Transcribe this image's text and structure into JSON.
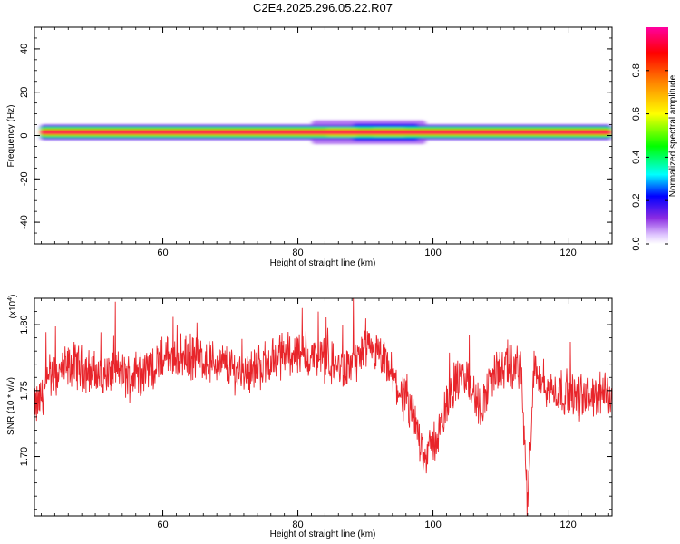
{
  "chart_data": [
    {
      "type": "heatmap",
      "title": "C2E4.2025.296.05.22.R07",
      "xlabel": "Height of straight line (km)",
      "ylabel": "Frequency (Hz)",
      "xlim": [
        41,
        126.5
      ],
      "ylim": [
        -50,
        50
      ],
      "xticks": [
        60,
        80,
        100,
        120
      ],
      "xtick_labels": [
        "60",
        "80",
        "100",
        "120"
      ],
      "yticks": [
        40,
        20,
        0,
        -20,
        -40
      ],
      "ytick_labels": [
        "40",
        "20",
        "0",
        "-20",
        "-40"
      ],
      "band": {
        "center_hz": 1.5,
        "segments": [
          {
            "x0": 41.8,
            "x1": 126.5,
            "half_width_hz": 3.5,
            "level": 0.15
          },
          {
            "x0": 41.8,
            "x1": 126.5,
            "half_width_hz": 2.4,
            "level": 0.45
          },
          {
            "x0": 41.8,
            "x1": 126.5,
            "half_width_hz": 1.3,
            "level": 0.8
          },
          {
            "x0": 41.8,
            "x1": 126.5,
            "half_width_hz": 0.5,
            "level": 0.95
          },
          {
            "x0": 82,
            "x1": 99,
            "half_width_hz": 5.5,
            "level": 0.08
          },
          {
            "x0": 88,
            "x1": 98,
            "half_width_hz": 4.0,
            "level": 0.2
          },
          {
            "x0": 84,
            "x1": 89,
            "half_width_hz": 1.8,
            "level": 0.55
          },
          {
            "x0": 91,
            "x1": 96,
            "half_width_hz": 2.2,
            "level": 0.5
          },
          {
            "x0": 100,
            "x1": 116,
            "half_width_hz": 2.8,
            "level": 0.1
          }
        ]
      },
      "colorbar": {
        "label": "Normalized spectral amplitude",
        "range": [
          0.0,
          1.0
        ],
        "ticks": [
          0.0,
          0.2,
          0.4,
          0.6,
          0.8
        ],
        "tick_labels": [
          "0.0",
          "0.2",
          "0.4",
          "0.6",
          "0.8"
        ]
      }
    },
    {
      "type": "line",
      "xlabel": "Height of straight line (km)",
      "ylabel": "SNR (10 * v/v)",
      "y_multiplier_label": "(x10",
      "y_multiplier_exp": "4",
      "xlim": [
        41,
        126.5
      ],
      "ylim": [
        1.655,
        1.82
      ],
      "xticks": [
        60,
        80,
        100,
        120
      ],
      "xtick_labels": [
        "60",
        "80",
        "100",
        "120"
      ],
      "yticks": [
        1.7,
        1.75,
        1.8
      ],
      "ytick_labels": [
        "1.70",
        "1.75",
        "1.80"
      ],
      "series": [
        {
          "name": "SNR",
          "color": "#e8242a",
          "x": [
            41,
            43,
            45,
            47,
            49,
            51,
            53,
            55,
            57,
            59,
            61,
            63,
            65,
            67,
            69,
            71,
            73,
            75,
            77,
            79,
            81,
            83,
            85,
            87,
            89,
            91,
            93,
            95,
            97,
            99,
            101,
            103,
            105,
            107,
            109,
            111,
            113,
            114,
            115,
            117,
            119,
            121,
            123,
            125,
            126.5
          ],
          "y": [
            1.735,
            1.755,
            1.765,
            1.77,
            1.765,
            1.76,
            1.765,
            1.76,
            1.765,
            1.77,
            1.775,
            1.775,
            1.775,
            1.772,
            1.77,
            1.765,
            1.765,
            1.77,
            1.775,
            1.78,
            1.775,
            1.775,
            1.77,
            1.765,
            1.775,
            1.78,
            1.77,
            1.75,
            1.73,
            1.7,
            1.72,
            1.755,
            1.76,
            1.735,
            1.765,
            1.765,
            1.77,
            1.66,
            1.77,
            1.75,
            1.75,
            1.745,
            1.745,
            1.748,
            1.745
          ]
        }
      ]
    }
  ]
}
